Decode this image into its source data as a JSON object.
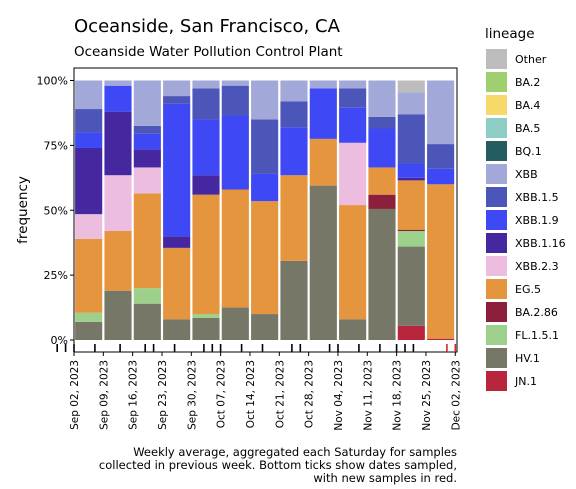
{
  "chart_data": {
    "type": "bar",
    "stacked": true,
    "normalized": true,
    "title": "Oceanside, San Francisco, CA",
    "subtitle": "Oceanside Water Pollution Control Plant",
    "ylabel": "frequency",
    "yticks": [
      "0%",
      "25%",
      "50%",
      "75%",
      "100%"
    ],
    "xticks": [
      "Sep 02, 2023",
      "Sep 09, 2023",
      "Sep 16, 2023",
      "Sep 23, 2023",
      "Sep 30, 2023",
      "Oct 07, 2023",
      "Oct 14, 2023",
      "Oct 21, 2023",
      "Oct 28, 2023",
      "Nov 04, 2023",
      "Nov 11, 2023",
      "Nov 18, 2023",
      "Nov 25, 2023",
      "Dec 02, 2023"
    ],
    "legend_title": "lineage",
    "legend_position": "right",
    "caption": [
      "Weekly average, aggregated each Saturday for samples",
      "collected in previous week. Bottom ticks show dates sampled,",
      "with new samples in red."
    ],
    "lineages": [
      {
        "name": "Other",
        "color": "#bdbdbd"
      },
      {
        "name": "BA.2",
        "color": "#9fcf6e"
      },
      {
        "name": "BA.4",
        "color": "#f7d96a"
      },
      {
        "name": "BA.5",
        "color": "#8ecdc6"
      },
      {
        "name": "BQ.1",
        "color": "#245c62"
      },
      {
        "name": "XBB",
        "color": "#a2a9d8"
      },
      {
        "name": "XBB.1.5",
        "color": "#4c56b8"
      },
      {
        "name": "XBB.1.9",
        "color": "#3e48f5"
      },
      {
        "name": "XBB.1.16",
        "color": "#4527a0"
      },
      {
        "name": "XBB.2.3",
        "color": "#ecbddf"
      },
      {
        "name": "EG.5",
        "color": "#e5953e"
      },
      {
        "name": "BA.2.86",
        "color": "#8b1f3c"
      },
      {
        "name": "FL.1.5.1",
        "color": "#9dd08a"
      },
      {
        "name": "HV.1",
        "color": "#777767"
      },
      {
        "name": "JN.1",
        "color": "#b8263e"
      }
    ],
    "weeks": [
      {
        "date": "Sep 02, 2023",
        "stack": [
          [
            "HV.1",
            7
          ],
          [
            "FL.1.5.1",
            3.5
          ],
          [
            "EG.5",
            28.5
          ],
          [
            "XBB.2.3",
            9.5
          ],
          [
            "XBB.1.16",
            25.5
          ],
          [
            "XBB.1.9",
            6
          ],
          [
            "XBB.1.5",
            9
          ],
          [
            "XBB",
            11
          ]
        ]
      },
      {
        "date": "Sep 09, 2023",
        "stack": [
          [
            "HV.1",
            19
          ],
          [
            "EG.5",
            23
          ],
          [
            "XBB.2.3",
            21.5
          ],
          [
            "XBB.1.16",
            24.5
          ],
          [
            "XBB.1.9",
            10
          ],
          [
            "XBB",
            2
          ]
        ]
      },
      {
        "date": "Sep 16, 2023",
        "stack": [
          [
            "HV.1",
            14
          ],
          [
            "FL.1.5.1",
            6
          ],
          [
            "EG.5",
            36.5
          ],
          [
            "XBB.2.3",
            10
          ],
          [
            "XBB.1.16",
            7
          ],
          [
            "XBB.1.9",
            6
          ],
          [
            "XBB.1.5",
            3
          ],
          [
            "XBB",
            17.5
          ]
        ]
      },
      {
        "date": "Sep 23, 2023",
        "stack": [
          [
            "HV.1",
            8
          ],
          [
            "EG.5",
            27.5
          ],
          [
            "XBB.1.16",
            4.5
          ],
          [
            "XBB.1.9",
            51
          ],
          [
            "XBB.1.5",
            3
          ],
          [
            "XBB",
            6
          ]
        ]
      },
      {
        "date": "Sep 30, 2023",
        "stack": [
          [
            "HV.1",
            8.5
          ],
          [
            "FL.1.5.1",
            1.5
          ],
          [
            "EG.5",
            46
          ],
          [
            "XBB.1.16",
            7.5
          ],
          [
            "XBB.1.9",
            21.5
          ],
          [
            "XBB.1.5",
            12
          ],
          [
            "XBB",
            3
          ]
        ]
      },
      {
        "date": "Oct 07, 2023",
        "stack": [
          [
            "HV.1",
            12.5
          ],
          [
            "EG.5",
            45.5
          ],
          [
            "XBB.1.9",
            28.5
          ],
          [
            "XBB.1.5",
            11.5
          ],
          [
            "XBB",
            2
          ]
        ]
      },
      {
        "date": "Oct 14, 2023",
        "stack": [
          [
            "HV.1",
            10
          ],
          [
            "EG.5",
            43.5
          ],
          [
            "XBB.1.9",
            10.5
          ],
          [
            "XBB.1.5",
            21
          ],
          [
            "XBB",
            15
          ]
        ]
      },
      {
        "date": "Oct 21, 2023",
        "stack": [
          [
            "HV.1",
            30.5
          ],
          [
            "EG.5",
            33
          ],
          [
            "XBB.1.9",
            18.5
          ],
          [
            "XBB.1.5",
            10
          ],
          [
            "XBB",
            8
          ]
        ]
      },
      {
        "date": "Oct 28, 2023",
        "stack": [
          [
            "HV.1",
            59.5
          ],
          [
            "EG.5",
            18
          ],
          [
            "XBB.1.9",
            19.5
          ],
          [
            "XBB",
            3
          ]
        ]
      },
      {
        "date": "Nov 04, 2023",
        "stack": [
          [
            "HV.1",
            8
          ],
          [
            "EG.5",
            44
          ],
          [
            "XBB.2.3",
            24
          ],
          [
            "XBB.1.9",
            13.5
          ],
          [
            "XBB.1.5",
            7.5
          ],
          [
            "XBB",
            3
          ]
        ]
      },
      {
        "date": "Nov 11, 2023",
        "stack": [
          [
            "HV.1",
            50.5
          ],
          [
            "BA.2.86",
            5.5
          ],
          [
            "EG.5",
            10.5
          ],
          [
            "XBB.1.9",
            15
          ],
          [
            "XBB.1.5",
            4.5
          ],
          [
            "XBB",
            14
          ]
        ]
      },
      {
        "date": "Nov 18, 2023",
        "stack": [
          [
            "JN.1",
            5.5
          ],
          [
            "HV.1",
            30.5
          ],
          [
            "FL.1.5.1",
            6
          ],
          [
            "BA.2.86",
            0.5
          ],
          [
            "EG.5",
            19
          ],
          [
            "XBB.1.16",
            1
          ],
          [
            "XBB.1.9",
            5.5
          ],
          [
            "XBB.1.5",
            19
          ],
          [
            "XBB",
            8.5
          ],
          [
            "Other",
            4.5
          ]
        ]
      },
      {
        "date": "Nov 25, 2023",
        "stack": [
          [
            "JN.1",
            0.5
          ],
          [
            "EG.5",
            59.5
          ],
          [
            "XBB.1.9",
            6
          ],
          [
            "XBB.1.5",
            9.5
          ],
          [
            "XBB",
            24.5
          ]
        ]
      }
    ],
    "sample_ticks": [
      {
        "date": "Aug 29, 2023",
        "new": false
      },
      {
        "date": "Aug 31, 2023",
        "new": false
      },
      {
        "date": "Sep 02, 2023",
        "new": false
      },
      {
        "date": "Sep 07, 2023",
        "new": false
      },
      {
        "date": "Sep 13, 2023",
        "new": false
      },
      {
        "date": "Sep 19, 2023",
        "new": false
      },
      {
        "date": "Sep 21, 2023",
        "new": false
      },
      {
        "date": "Sep 26, 2023",
        "new": false
      },
      {
        "date": "Oct 03, 2023",
        "new": false
      },
      {
        "date": "Oct 05, 2023",
        "new": false
      },
      {
        "date": "Oct 07, 2023",
        "new": false
      },
      {
        "date": "Oct 12, 2023",
        "new": false
      },
      {
        "date": "Oct 17, 2023",
        "new": false
      },
      {
        "date": "Oct 24, 2023",
        "new": false
      },
      {
        "date": "Oct 26, 2023",
        "new": false
      },
      {
        "date": "Nov 02, 2023",
        "new": false
      },
      {
        "date": "Nov 04, 2023",
        "new": false
      },
      {
        "date": "Nov 09, 2023",
        "new": false
      },
      {
        "date": "Nov 14, 2023",
        "new": false
      },
      {
        "date": "Nov 18, 2023",
        "new": false
      },
      {
        "date": "Nov 20, 2023",
        "new": false
      },
      {
        "date": "Nov 22, 2023",
        "new": false
      },
      {
        "date": "Nov 30, 2023",
        "new": true
      },
      {
        "date": "Dec 02, 2023",
        "new": true
      }
    ]
  }
}
